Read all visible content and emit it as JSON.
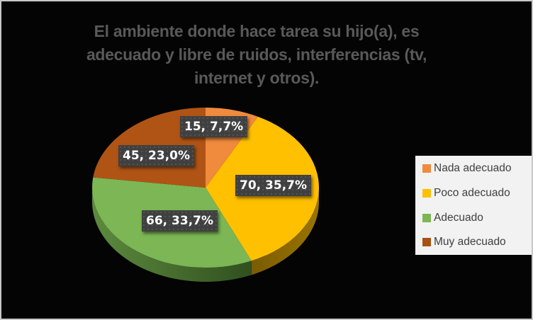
{
  "chart_data": {
    "type": "pie",
    "title": "El ambiente donde hace tarea su hijo(a), es adecuado y libre de ruidos, interferencias (tv, internet y otros).",
    "title_lines": [
      "El ambiente donde hace tarea su hijo(a), es",
      "adecuado y libre de ruidos, interferencias (tv,",
      "internet y otros)."
    ],
    "categories": [
      "Nada adecuado",
      "Poco adecuado",
      "Adecuado",
      "Muy adecuado"
    ],
    "values": [
      15,
      70,
      66,
      45
    ],
    "percentages": [
      "7,7%",
      "35,7%",
      "33,7%",
      "23,0%"
    ],
    "data_labels": [
      "15, 7,7%",
      "70, 35,7%",
      "66, 33,7%",
      "45, 23,0%"
    ],
    "colors": [
      "#f08a3c",
      "#ffc000",
      "#7cb655",
      "#b05415"
    ],
    "legend_position": "right",
    "style": "3d"
  },
  "legend": {
    "items": [
      {
        "label": "Nada adecuado",
        "color": "#f08a3c"
      },
      {
        "label": "Poco adecuado",
        "color": "#ffc000"
      },
      {
        "label": "Adecuado",
        "color": "#7cb655"
      },
      {
        "label": "Muy adecuado",
        "color": "#b05415"
      }
    ]
  }
}
